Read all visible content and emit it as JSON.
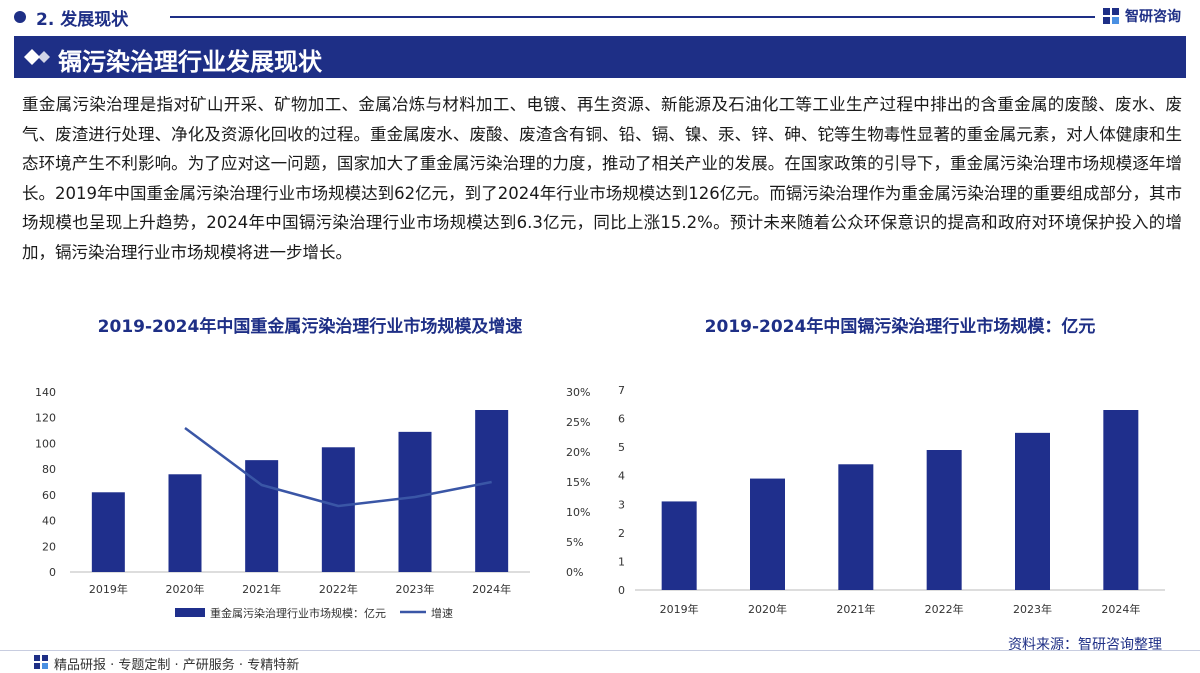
{
  "header": {
    "section": "2. 发展现状",
    "brand": "智研咨询"
  },
  "banner": {
    "title": "镉污染治理行业发展现状"
  },
  "intro": "重金属污染治理是指对矿山开采、矿物加工、金属冶炼与材料加工、电镀、再生资源、新能源及石油化工等工业生产过程中排出的含重金属的废酸、废水、废气、废渣进行处理、净化及资源化回收的过程。重金属废水、废酸、废渣含有铜、铅、镉、镍、汞、锌、砷、铊等生物毒性显著的重金属元素，对人体健康和生态环境产生不利影响。为了应对这一问题，国家加大了重金属污染治理的力度，推动了相关产业的发展。在国家政策的引导下，重金属污染治理市场规模逐年增长。2019年中国重金属污染治理行业市场规模达到62亿元，到了2024年行业市场规模达到126亿元。而镉污染治理作为重金属污染治理的重要组成部分，其市场规模也呈现上升趋势，2024年中国镉污染治理行业市场规模达到6.3亿元，同比上涨15.2%。预计未来随着公众环保意识的提高和政府对环境保护投入的增加，镉污染治理行业市场规模将进一步增长。",
  "colors": {
    "primary": "#1e2f86",
    "bar": "#1f2f8c",
    "line": "#3a56a6"
  },
  "chart_data": [
    {
      "type": "bar",
      "title": "2019-2024年中国重金属污染治理行业市场规模及增速",
      "categories": [
        "2019年",
        "2020年",
        "2021年",
        "2022年",
        "2023年",
        "2024年"
      ],
      "series": [
        {
          "name": "重金属污染治理行业市场规模：亿元",
          "type": "bar",
          "axis": "left",
          "values": [
            62,
            76,
            87,
            97,
            109,
            126
          ]
        },
        {
          "name": "增速",
          "type": "line",
          "axis": "right",
          "values": [
            null,
            0.24,
            0.145,
            0.11,
            0.125,
            0.15
          ]
        }
      ],
      "y_left": {
        "ylim": [
          0,
          140
        ],
        "ticks": [
          0,
          20,
          40,
          60,
          80,
          100,
          120,
          140
        ]
      },
      "y_right": {
        "ylim": [
          0,
          0.3
        ],
        "ticks": [
          "0%",
          "5%",
          "10%",
          "15%",
          "20%",
          "25%",
          "30%"
        ]
      },
      "legend": "bottom",
      "grid": false
    },
    {
      "type": "bar",
      "title": "2019-2024年中国镉污染治理行业市场规模：亿元",
      "categories": [
        "2019年",
        "2020年",
        "2021年",
        "2022年",
        "2023年",
        "2024年"
      ],
      "series": [
        {
          "values": [
            3.1,
            3.9,
            4.4,
            4.9,
            5.5,
            6.3
          ]
        }
      ],
      "ylim": [
        0,
        7
      ],
      "ticks": [
        0,
        1,
        2,
        3,
        4,
        5,
        6,
        7
      ],
      "grid": false
    }
  ],
  "source": "资料来源：智研咨询整理",
  "footer": "精品研报 · 专题定制 · 产研服务 · 专精特新"
}
